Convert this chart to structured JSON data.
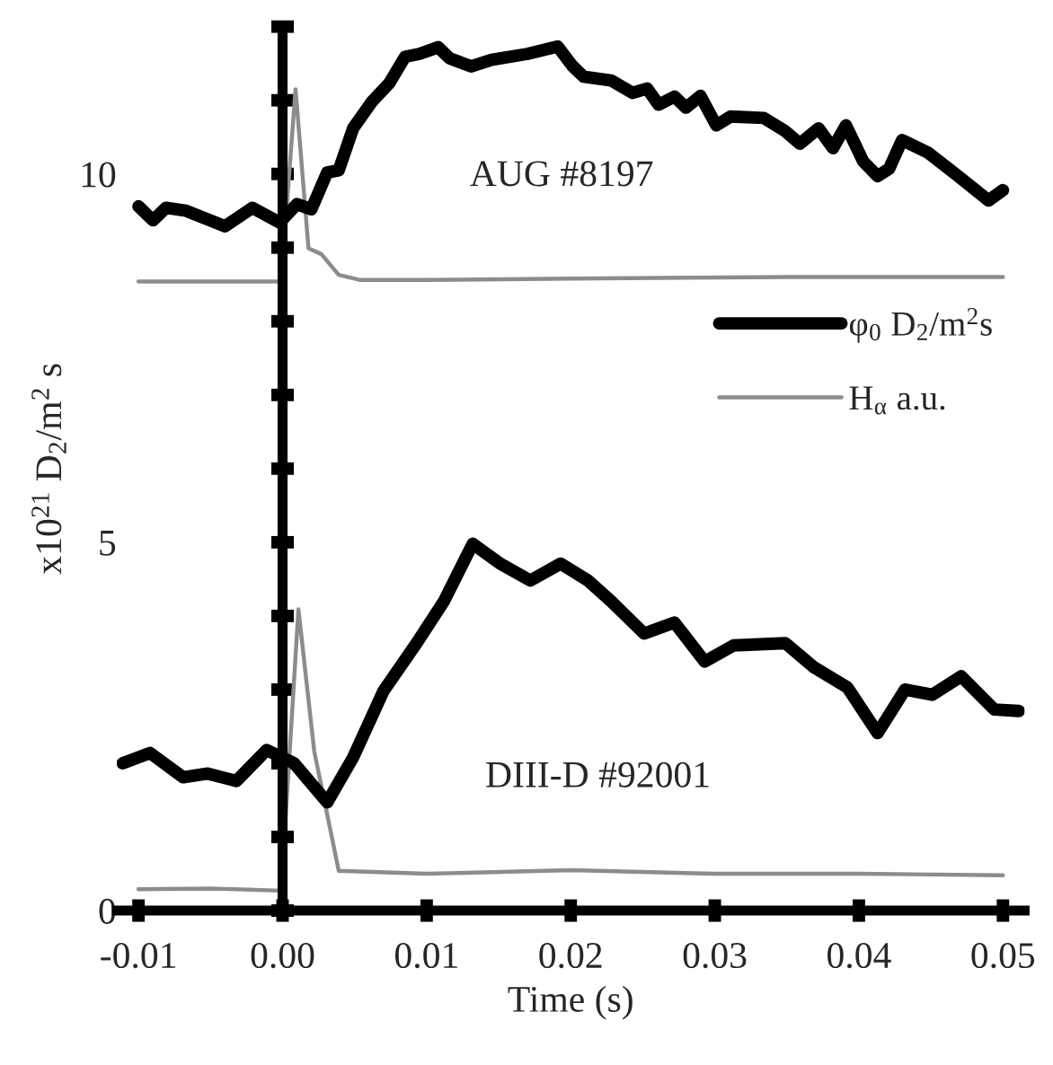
{
  "chart_data": {
    "type": "line",
    "xlabel": "Time (s)",
    "ylabel": "x10$^{21}$ D$_{2}$/m$^{2}$ s",
    "xlim": [
      -0.0115,
      0.0515
    ],
    "ylim": [
      0,
      12
    ],
    "xticks": [
      {
        "value": -0.01,
        "label": "-0.01"
      },
      {
        "value": 0,
        "label": "0.00"
      },
      {
        "value": 0.01,
        "label": "0.01"
      },
      {
        "value": 0.02,
        "label": "0.02"
      },
      {
        "value": 0.03,
        "label": "0.03"
      },
      {
        "value": 0.04,
        "label": "0.04"
      },
      {
        "value": 0.05,
        "label": "0.05"
      }
    ],
    "yticks": [
      0,
      {
        "value": 1,
        "label": null
      },
      {
        "value": 2,
        "label": null
      },
      {
        "value": 3,
        "label": null
      },
      {
        "value": 4,
        "label": null
      },
      5,
      {
        "value": 6,
        "label": null
      },
      {
        "value": 7,
        "label": null
      },
      {
        "value": 8,
        "label": null
      },
      {
        "value": 9,
        "label": null
      },
      10,
      {
        "value": 11,
        "label": null
      },
      {
        "value": 12,
        "label": null
      }
    ],
    "legend": "right",
    "marker": "none",
    "line_style": "solid",
    "annotations": [
      "AUG #8197",
      "DIII-D #92001"
    ],
    "series": [
      {
        "name": "φ$_{0}$ D$_{2}$/m$^{2}$s",
        "color": "#000000",
        "x": [
          -0.01,
          -0.009,
          -0.0081,
          -0.0067,
          -0.004,
          -0.0021,
          -0.0002,
          0.001,
          0.002,
          0.0031,
          0.0039,
          0.0049,
          0.0062,
          0.0074,
          0.0085,
          0.0095,
          0.0108,
          0.0116,
          0.0131,
          0.0145,
          0.017,
          0.0191,
          0.0201,
          0.0209,
          0.0228,
          0.0243,
          0.0253,
          0.0261,
          0.0272,
          0.028,
          0.029,
          0.0301,
          0.0311,
          0.0334,
          0.0349,
          0.0359,
          0.0372,
          0.0382,
          0.0391,
          0.0403,
          0.0413,
          0.0421,
          0.043,
          0.0448,
          0.0469,
          0.049,
          0.05
        ],
        "values": [
          9.56,
          9.37,
          9.54,
          9.5,
          9.29,
          9.54,
          9.34,
          9.59,
          9.52,
          10.02,
          10.05,
          10.62,
          10.98,
          11.23,
          11.59,
          11.63,
          11.72,
          11.57,
          11.46,
          11.55,
          11.63,
          11.73,
          11.47,
          11.32,
          11.27,
          11.1,
          11.16,
          10.94,
          11.05,
          10.9,
          11.06,
          10.66,
          10.78,
          10.76,
          10.58,
          10.41,
          10.62,
          10.35,
          10.66,
          10.17,
          9.97,
          10.07,
          10.46,
          10.29,
          9.97,
          9.64,
          9.78
        ]
      },
      {
        "name": "H$_{α}$ a.u.",
        "color": "#8c8c8c",
        "x": [
          -0.01,
          -0.005,
          -0.0001,
          0.0009,
          0.0018,
          0.0027,
          0.0039,
          0.0054,
          0.01,
          0.02,
          0.035,
          0.05
        ],
        "values": [
          8.54,
          8.54,
          8.54,
          11.15,
          8.99,
          8.91,
          8.63,
          8.56,
          8.56,
          8.58,
          8.6,
          8.6
        ]
      },
      {
        "color": "#000000",
        "x": [
          -0.0111,
          -0.0092,
          -0.0069,
          -0.0052,
          -0.0032,
          -0.0011,
          0.0008,
          0.0031,
          0.0049,
          0.007,
          0.0093,
          0.0112,
          0.0132,
          0.0151,
          0.0172,
          0.0193,
          0.0212,
          0.0228,
          0.0251,
          0.0272,
          0.0293,
          0.0313,
          0.0349,
          0.0369,
          0.0392,
          0.0413,
          0.0432,
          0.0451,
          0.0471,
          0.0494,
          0.0511
        ],
        "values": [
          2.0,
          2.14,
          1.81,
          1.86,
          1.76,
          2.18,
          2.0,
          1.47,
          2.08,
          2.98,
          3.63,
          4.2,
          4.98,
          4.71,
          4.48,
          4.71,
          4.48,
          4.2,
          3.76,
          3.91,
          3.38,
          3.6,
          3.63,
          3.3,
          3.03,
          2.41,
          3.0,
          2.93,
          3.18,
          2.73,
          2.71
        ]
      },
      {
        "color": "#8c8c8c",
        "x": [
          -0.01,
          -0.005,
          -0.0001,
          0.0011,
          0.0022,
          0.0039,
          0.01,
          0.02,
          0.03,
          0.04,
          0.05
        ],
        "values": [
          0.29,
          0.3,
          0.27,
          4.09,
          2.16,
          0.54,
          0.5,
          0.55,
          0.5,
          0.5,
          0.48
        ]
      }
    ]
  }
}
